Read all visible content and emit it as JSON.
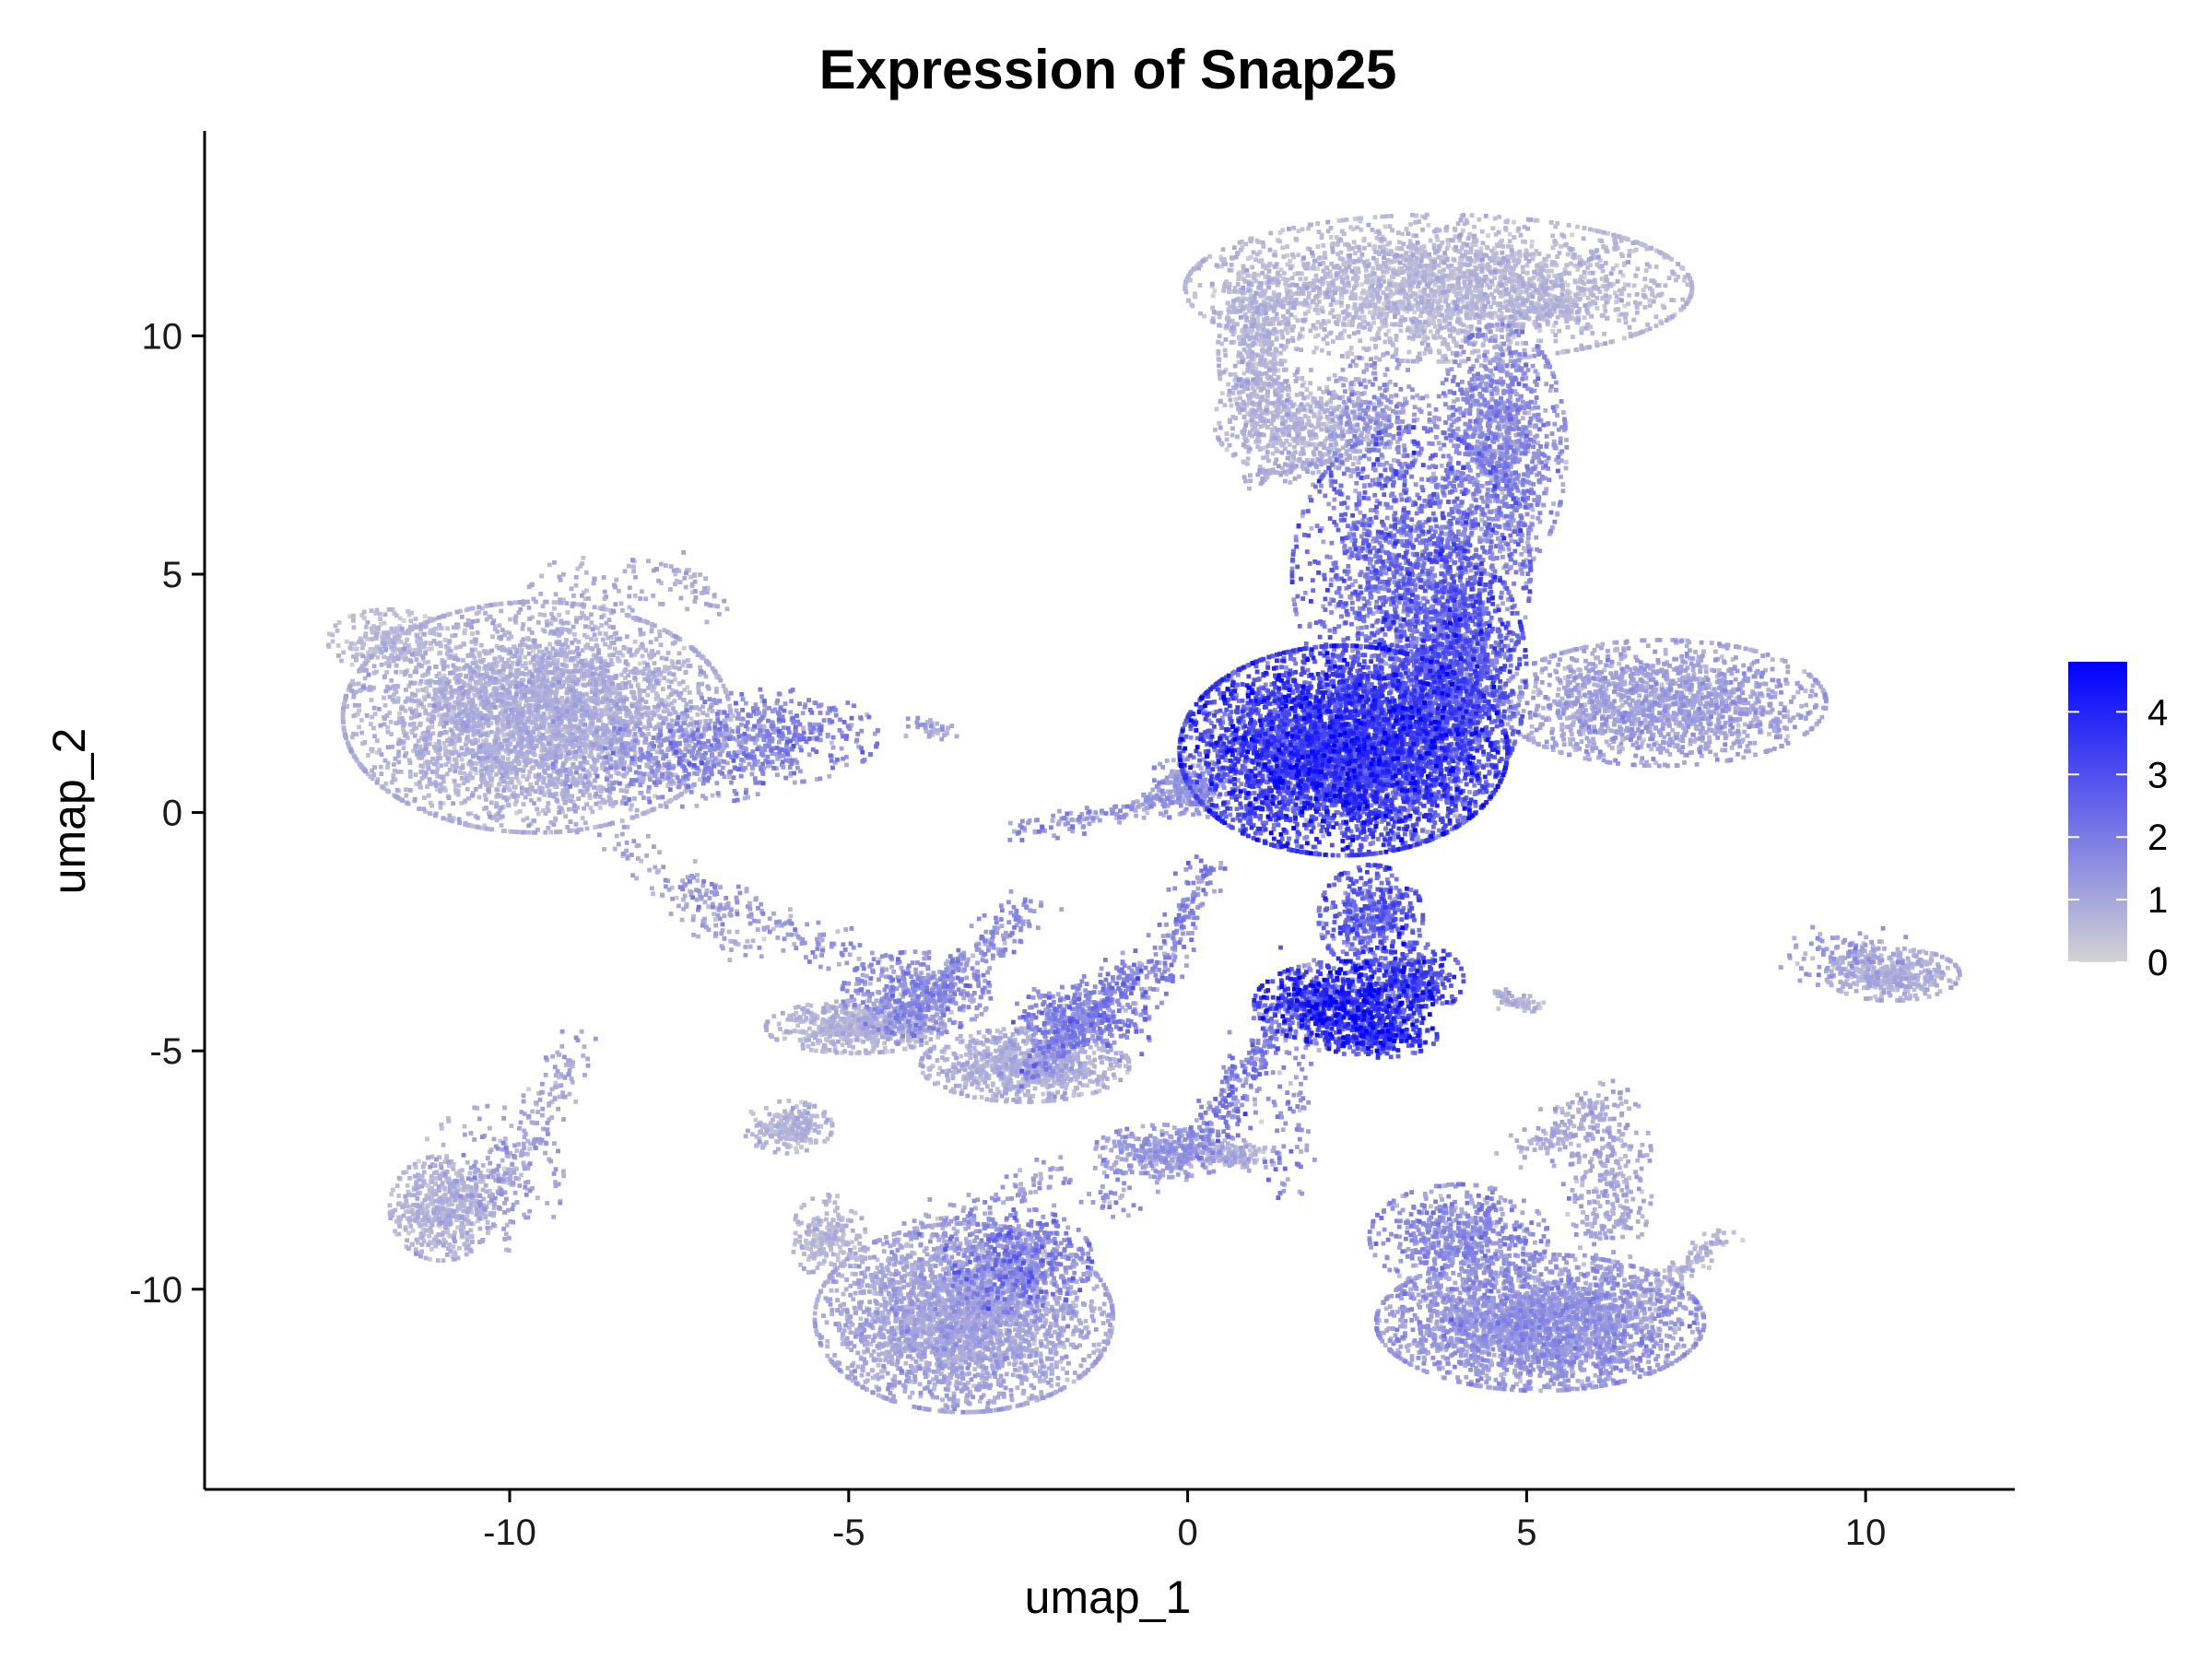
{
  "chart_data": {
    "type": "scatter",
    "title": "Expression of Snap25",
    "xlabel": "umap_1",
    "ylabel": "umap_2",
    "xlim": [
      -14.5,
      12.2
    ],
    "ylim": [
      -14.2,
      14.3
    ],
    "x_ticks": [
      -10,
      -5,
      0,
      5,
      10
    ],
    "y_ticks": [
      -10,
      -5,
      0,
      5,
      10
    ],
    "x_tick_labels": [
      "-10",
      "-5",
      "0",
      "5",
      "10"
    ],
    "y_tick_labels": [
      "-10",
      "-5",
      "0",
      "5",
      "10"
    ],
    "grid": false,
    "color_scale": {
      "low": "#d3d3d3",
      "high": "#0000ff",
      "min": 0,
      "max": 4.8,
      "ticks": [
        0,
        1,
        2,
        3,
        4
      ],
      "tick_labels": [
        "0",
        "1",
        "2",
        "3",
        "4"
      ],
      "legend_position": "right"
    },
    "clusters": [
      {
        "cx": 2.3,
        "cy": 1.3,
        "sx": 1.1,
        "sy": 1.0,
        "n": 5200,
        "expr": 2.9
      },
      {
        "cx": 3.9,
        "cy": 2.9,
        "sx": 0.5,
        "sy": 1.2,
        "n": 1400,
        "expr": 2.4
      },
      {
        "cx": 3.3,
        "cy": 5.0,
        "sx": 0.8,
        "sy": 1.4,
        "n": 1700,
        "expr": 2.1
      },
      {
        "cx": 4.6,
        "cy": 7.6,
        "sx": 0.45,
        "sy": 1.2,
        "n": 1200,
        "expr": 1.4
      },
      {
        "cx": 3.7,
        "cy": 11.0,
        "sx": 1.7,
        "sy": 0.7,
        "n": 2600,
        "expr": 0.5
      },
      {
        "cx": 1.0,
        "cy": 9.8,
        "sx": 0.25,
        "sy": 1.0,
        "n": 500,
        "expr": 0.6
      },
      {
        "cx": 1.6,
        "cy": 8.2,
        "sx": 0.55,
        "sy": 0.5,
        "n": 500,
        "expr": 0.6
      },
      {
        "cx": 2.8,
        "cy": 8.3,
        "sx": 0.35,
        "sy": 0.6,
        "n": 300,
        "expr": 1.2
      },
      {
        "cx": 7.0,
        "cy": 2.3,
        "sx": 1.1,
        "sy": 0.6,
        "n": 1600,
        "expr": 1.0
      },
      {
        "cx": 2.7,
        "cy": -2.2,
        "sx": 0.35,
        "sy": 0.5,
        "n": 450,
        "expr": 2.3
      },
      {
        "cx": 2.3,
        "cy": -4.0,
        "sx": 0.6,
        "sy": 0.4,
        "n": 800,
        "expr": 3.3
      },
      {
        "cx": 3.3,
        "cy": -3.5,
        "sx": 0.35,
        "sy": 0.35,
        "n": 300,
        "expr": 2.7
      },
      {
        "cx": 2.8,
        "cy": -4.7,
        "sx": 0.4,
        "sy": 0.2,
        "n": 300,
        "expr": 3.0
      },
      {
        "cx": -9.6,
        "cy": 2.0,
        "sx": 1.3,
        "sy": 1.1,
        "n": 4000,
        "expr": 0.7
      },
      {
        "cx": -11.8,
        "cy": 3.6,
        "sx": 0.4,
        "sy": 0.3,
        "n": 220,
        "expr": 0.5
      },
      {
        "cx": -6.1,
        "cy": 1.6,
        "sx": 0.7,
        "sy": 0.45,
        "n": 450,
        "expr": 1.6
      },
      {
        "cx": -7.6,
        "cy": 1.0,
        "sx": 0.8,
        "sy": 0.4,
        "n": 350,
        "expr": 1.4
      },
      {
        "cx": -8.6,
        "cy": 4.7,
        "sx": 0.6,
        "sy": 0.3,
        "n": 80,
        "expr": 0.8
      },
      {
        "cx": -4.9,
        "cy": -4.5,
        "sx": 0.6,
        "sy": 0.25,
        "n": 600,
        "expr": 0.6
      },
      {
        "cx": -4.0,
        "cy": -3.8,
        "sx": 0.5,
        "sy": 0.4,
        "n": 400,
        "expr": 1.4
      },
      {
        "cx": -2.4,
        "cy": -5.3,
        "sx": 0.7,
        "sy": 0.35,
        "n": 900,
        "expr": 0.7
      },
      {
        "cx": -1.7,
        "cy": -4.3,
        "sx": 0.4,
        "sy": 0.35,
        "n": 300,
        "expr": 1.6
      },
      {
        "cx": -5.9,
        "cy": -6.6,
        "sx": 0.3,
        "sy": 0.25,
        "n": 220,
        "expr": 0.6
      },
      {
        "cx": -11.0,
        "cy": -8.3,
        "sx": 0.35,
        "sy": 0.5,
        "n": 500,
        "expr": 0.6
      },
      {
        "cx": -10.3,
        "cy": -7.7,
        "sx": 0.5,
        "sy": 0.7,
        "n": 200,
        "expr": 1.0
      },
      {
        "cx": -3.3,
        "cy": -10.6,
        "sx": 1.0,
        "sy": 0.9,
        "n": 3000,
        "expr": 0.9
      },
      {
        "cx": -2.5,
        "cy": -9.4,
        "sx": 0.5,
        "sy": 0.5,
        "n": 500,
        "expr": 1.8
      },
      {
        "cx": -5.3,
        "cy": -8.9,
        "sx": 0.25,
        "sy": 0.4,
        "n": 200,
        "expr": 0.6
      },
      {
        "cx": 5.2,
        "cy": -10.7,
        "sx": 1.1,
        "sy": 0.65,
        "n": 2800,
        "expr": 1.2
      },
      {
        "cx": 4.0,
        "cy": -8.9,
        "sx": 0.6,
        "sy": 0.5,
        "n": 600,
        "expr": 1.4
      },
      {
        "cx": 6.2,
        "cy": -7.6,
        "sx": 0.3,
        "sy": 0.9,
        "n": 300,
        "expr": 0.9
      },
      {
        "cx": 10.4,
        "cy": -3.4,
        "sx": 0.45,
        "sy": 0.25,
        "n": 400,
        "expr": 0.7
      },
      {
        "cx": 9.7,
        "cy": -3.0,
        "sx": 0.5,
        "sy": 0.3,
        "n": 120,
        "expr": 1.1
      },
      {
        "cx": -0.3,
        "cy": -7.1,
        "sx": 0.5,
        "sy": 0.25,
        "n": 300,
        "expr": 1.1
      },
      {
        "cx": 0.7,
        "cy": -7.2,
        "sx": 0.3,
        "sy": 0.15,
        "n": 120,
        "expr": 0.6
      },
      {
        "cx": 0.0,
        "cy": 0.5,
        "sx": 0.3,
        "sy": 0.3,
        "n": 250,
        "expr": 1.2
      }
    ],
    "trails": [
      {
        "from": [
          -4.5,
          -4.7
        ],
        "to": [
          -2.3,
          -2.0
        ],
        "n": 300,
        "expr": 1.4,
        "spread": 0.18
      },
      {
        "from": [
          -2.3,
          -5.5
        ],
        "to": [
          -0.7,
          -3.2
        ],
        "n": 300,
        "expr": 1.7,
        "spread": 0.2
      },
      {
        "from": [
          -0.9,
          -4.9
        ],
        "to": [
          0.3,
          -1.0
        ],
        "n": 200,
        "expr": 1.6,
        "spread": 0.15
      },
      {
        "from": [
          -2.5,
          -0.4
        ],
        "to": [
          0.4,
          0.4
        ],
        "n": 150,
        "expr": 1.3,
        "spread": 0.12
      },
      {
        "from": [
          0.2,
          -7.0
        ],
        "to": [
          1.5,
          -4.0
        ],
        "n": 250,
        "expr": 1.8,
        "spread": 0.18
      },
      {
        "from": [
          1.9,
          -3.0
        ],
        "to": [
          1.4,
          -8.0
        ],
        "n": 120,
        "expr": 1.5,
        "spread": 0.2
      },
      {
        "from": [
          -7.6,
          -1.4
        ],
        "to": [
          -5.0,
          -3.0
        ],
        "n": 150,
        "expr": 1.2,
        "spread": 0.2
      },
      {
        "from": [
          -8.5,
          -0.5
        ],
        "to": [
          -6.5,
          -3.0
        ],
        "n": 100,
        "expr": 0.9,
        "spread": 0.2
      },
      {
        "from": [
          -10.2,
          -8.0
        ],
        "to": [
          -9.0,
          -5.0
        ],
        "n": 150,
        "expr": 1.0,
        "spread": 0.18
      },
      {
        "from": [
          -4.2,
          -9.0
        ],
        "to": [
          -1.9,
          -7.5
        ],
        "n": 120,
        "expr": 1.2,
        "spread": 0.2
      },
      {
        "from": [
          -1.5,
          -8.2
        ],
        "to": [
          1.0,
          -6.0
        ],
        "n": 120,
        "expr": 1.3,
        "spread": 0.25
      },
      {
        "from": [
          6.3,
          -10.8
        ],
        "to": [
          7.9,
          -8.8
        ],
        "n": 150,
        "expr": 0.6,
        "spread": 0.12
      },
      {
        "from": [
          5.1,
          -7.2
        ],
        "to": [
          6.1,
          -6.0
        ],
        "n": 120,
        "expr": 0.8,
        "spread": 0.2
      },
      {
        "from": [
          4.5,
          -3.8
        ],
        "to": [
          5.2,
          -4.1
        ],
        "n": 60,
        "expr": 0.6,
        "spread": 0.08
      },
      {
        "from": [
          1.0,
          7.0
        ],
        "to": [
          2.3,
          7.5
        ],
        "n": 100,
        "expr": 0.8,
        "spread": 0.15
      },
      {
        "from": [
          4.7,
          10.6
        ],
        "to": [
          5.8,
          10.5
        ],
        "n": 80,
        "expr": 0.6,
        "spread": 0.15
      },
      {
        "from": [
          -7.5,
          5.2
        ],
        "to": [
          -7.0,
          4.2
        ],
        "n": 40,
        "expr": 0.8,
        "spread": 0.15
      },
      {
        "from": [
          -4.0,
          1.9
        ],
        "to": [
          -3.5,
          1.6
        ],
        "n": 40,
        "expr": 1.0,
        "spread": 0.1
      }
    ]
  }
}
